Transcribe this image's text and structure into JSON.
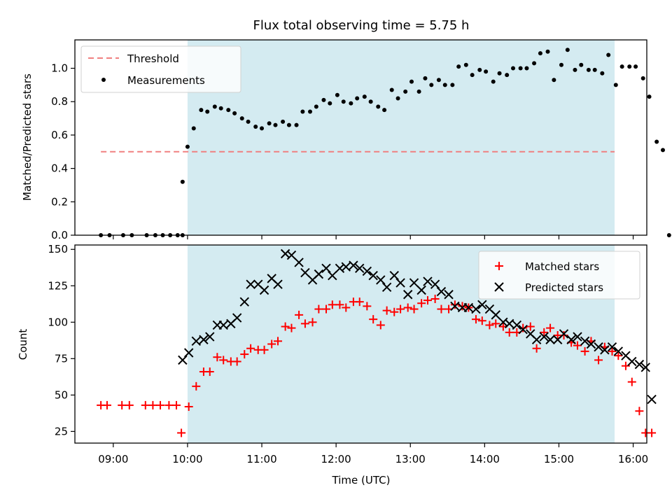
{
  "chart_data": [
    {
      "type": "scatter",
      "title": "Flux total observing time = 5.75 h",
      "xlabel": "",
      "ylabel": "Matched/Predicted stars",
      "xlim": [
        "08:29",
        "16:11"
      ],
      "ylim": [
        0,
        1.17
      ],
      "yticks": [
        0.0,
        0.2,
        0.4,
        0.6,
        0.8,
        1.0
      ],
      "ytick_labels": [
        "0.0",
        "0.2",
        "0.4",
        "0.6",
        "0.8",
        "1.0"
      ],
      "shaded_region": {
        "x_start": "10:00",
        "x_end": "15:45",
        "color": "#d4ebf1"
      },
      "legend": {
        "placement": "upper-left",
        "entries": [
          "Threshold",
          "Measurements"
        ]
      },
      "threshold": {
        "name": "Threshold",
        "y": 0.5,
        "x_start": "08:50",
        "x_end": "15:45",
        "color": "#f08080"
      },
      "series": [
        {
          "name": "Measurements",
          "color": "#000000",
          "points": [
            [
              "08:50",
              0
            ],
            [
              "08:57",
              0
            ],
            [
              "09:08",
              0
            ],
            [
              "09:15",
              0
            ],
            [
              "09:27",
              0
            ],
            [
              "09:34",
              0
            ],
            [
              "09:40",
              0
            ],
            [
              "09:46",
              0
            ],
            [
              "09:52",
              0
            ],
            [
              "09:56",
              0
            ],
            [
              "09:56",
              0.32
            ],
            [
              "10:00",
              0.53
            ],
            [
              "10:05",
              0.64
            ],
            [
              "10:11",
              0.75
            ],
            [
              "10:16",
              0.74
            ],
            [
              "10:22",
              0.77
            ],
            [
              "10:27",
              0.76
            ],
            [
              "10:33",
              0.75
            ],
            [
              "10:38",
              0.73
            ],
            [
              "10:44",
              0.7
            ],
            [
              "10:49",
              0.68
            ],
            [
              "10:55",
              0.65
            ],
            [
              "11:00",
              0.64
            ],
            [
              "11:06",
              0.67
            ],
            [
              "11:11",
              0.66
            ],
            [
              "11:17",
              0.68
            ],
            [
              "11:22",
              0.66
            ],
            [
              "11:28",
              0.66
            ],
            [
              "11:33",
              0.74
            ],
            [
              "11:39",
              0.74
            ],
            [
              "11:44",
              0.77
            ],
            [
              "11:50",
              0.81
            ],
            [
              "11:55",
              0.79
            ],
            [
              "12:01",
              0.84
            ],
            [
              "12:06",
              0.8
            ],
            [
              "12:12",
              0.79
            ],
            [
              "12:17",
              0.82
            ],
            [
              "12:23",
              0.83
            ],
            [
              "12:28",
              0.8
            ],
            [
              "12:34",
              0.77
            ],
            [
              "12:39",
              0.75
            ],
            [
              "12:45",
              0.87
            ],
            [
              "12:50",
              0.82
            ],
            [
              "12:56",
              0.86
            ],
            [
              "13:01",
              0.92
            ],
            [
              "13:07",
              0.86
            ],
            [
              "13:12",
              0.94
            ],
            [
              "13:17",
              0.9
            ],
            [
              "13:23",
              0.93
            ],
            [
              "13:28",
              0.9
            ],
            [
              "13:34",
              0.9
            ],
            [
              "13:39",
              1.01
            ],
            [
              "13:45",
              1.02
            ],
            [
              "13:50",
              0.96
            ],
            [
              "13:56",
              0.99
            ],
            [
              "14:01",
              0.98
            ],
            [
              "14:07",
              0.92
            ],
            [
              "14:12",
              0.97
            ],
            [
              "14:18",
              0.96
            ],
            [
              "14:23",
              1.0
            ],
            [
              "14:29",
              1.0
            ],
            [
              "14:34",
              1.0
            ],
            [
              "14:40",
              1.03
            ],
            [
              "14:45",
              1.09
            ],
            [
              "14:51",
              1.1
            ],
            [
              "14:56",
              0.93
            ],
            [
              "15:02",
              1.02
            ],
            [
              "15:07",
              1.11
            ],
            [
              "15:13",
              0.99
            ],
            [
              "15:18",
              1.02
            ],
            [
              "15:24",
              0.99
            ],
            [
              "15:29",
              0.99
            ],
            [
              "15:35",
              0.97
            ],
            [
              "15:40",
              1.08
            ],
            [
              "15:46",
              0.9
            ],
            [
              "15:51",
              1.01
            ],
            [
              "15:57",
              1.01
            ],
            [
              "16:02",
              1.01
            ],
            [
              "16:08",
              0.94
            ],
            [
              "16:13",
              0.83
            ],
            [
              "16:19",
              0.56
            ],
            [
              "16:24",
              0.51
            ],
            [
              "16:29",
              0
            ]
          ]
        }
      ]
    },
    {
      "type": "scatter",
      "title": "",
      "xlabel": "Time (UTC)",
      "ylabel": "Count",
      "xlim": [
        "08:29",
        "16:11"
      ],
      "ylim": [
        17,
        153
      ],
      "yticks": [
        25,
        50,
        75,
        100,
        125,
        150
      ],
      "ytick_labels": [
        "25",
        "50",
        "75",
        "100",
        "125",
        "150"
      ],
      "xticks": [
        "09:00",
        "10:00",
        "11:00",
        "12:00",
        "13:00",
        "14:00",
        "15:00",
        "16:00"
      ],
      "xtick_labels": [
        "09:00",
        "10:00",
        "11:00",
        "12:00",
        "13:00",
        "14:00",
        "15:00",
        "16:00"
      ],
      "shaded_region": {
        "x_start": "10:00",
        "x_end": "15:45",
        "color": "#d4ebf1"
      },
      "legend": {
        "placement": "upper-right",
        "entries": [
          "Matched stars",
          "Predicted stars"
        ]
      },
      "series": [
        {
          "name": "Matched stars",
          "marker": "plus",
          "color": "#ff0000",
          "points": [
            [
              "08:50",
              43
            ],
            [
              "08:55",
              43
            ],
            [
              "09:07",
              43
            ],
            [
              "09:13",
              43
            ],
            [
              "09:26",
              43
            ],
            [
              "09:32",
              43
            ],
            [
              "09:38",
              43
            ],
            [
              "09:45",
              43
            ],
            [
              "09:51",
              43
            ],
            [
              "09:55",
              24
            ],
            [
              "10:01",
              42
            ],
            [
              "10:07",
              56
            ],
            [
              "10:13",
              66
            ],
            [
              "10:18",
              66
            ],
            [
              "10:24",
              76
            ],
            [
              "10:29",
              74
            ],
            [
              "10:35",
              73
            ],
            [
              "10:40",
              73
            ],
            [
              "10:46",
              78
            ],
            [
              "10:51",
              82
            ],
            [
              "10:57",
              81
            ],
            [
              "11:02",
              81
            ],
            [
              "11:08",
              85
            ],
            [
              "11:13",
              87
            ],
            [
              "11:19",
              97
            ],
            [
              "11:24",
              96
            ],
            [
              "11:30",
              105
            ],
            [
              "11:35",
              99
            ],
            [
              "11:41",
              100
            ],
            [
              "11:46",
              109
            ],
            [
              "11:52",
              109
            ],
            [
              "11:57",
              112
            ],
            [
              "12:03",
              112
            ],
            [
              "12:08",
              110
            ],
            [
              "12:14",
              114
            ],
            [
              "12:19",
              114
            ],
            [
              "12:25",
              111
            ],
            [
              "12:30",
              102
            ],
            [
              "12:36",
              98
            ],
            [
              "12:41",
              108
            ],
            [
              "12:47",
              107
            ],
            [
              "12:52",
              109
            ],
            [
              "12:58",
              110
            ],
            [
              "13:03",
              109
            ],
            [
              "13:09",
              113
            ],
            [
              "13:14",
              115
            ],
            [
              "13:20",
              116
            ],
            [
              "13:25",
              109
            ],
            [
              "13:31",
              109
            ],
            [
              "13:36",
              112
            ],
            [
              "13:42",
              111
            ],
            [
              "13:47",
              110
            ],
            [
              "13:53",
              102
            ],
            [
              "13:58",
              101
            ],
            [
              "14:04",
              98
            ],
            [
              "14:09",
              99
            ],
            [
              "14:15",
              97
            ],
            [
              "14:20",
              93
            ],
            [
              "14:26",
              93
            ],
            [
              "14:31",
              96
            ],
            [
              "14:37",
              97
            ],
            [
              "14:42",
              82
            ],
            [
              "14:48",
              93
            ],
            [
              "14:53",
              96
            ],
            [
              "14:59",
              91
            ],
            [
              "15:04",
              91
            ],
            [
              "15:10",
              86
            ],
            [
              "15:15",
              84
            ],
            [
              "15:21",
              80
            ],
            [
              "15:26",
              87
            ],
            [
              "15:32",
              74
            ],
            [
              "15:37",
              83
            ],
            [
              "15:43",
              80
            ],
            [
              "15:48",
              77
            ],
            [
              "15:54",
              70
            ],
            [
              "15:59",
              59
            ],
            [
              "16:05",
              39
            ],
            [
              "16:10",
              24
            ],
            [
              "16:15",
              24
            ]
          ]
        },
        {
          "name": "Predicted stars",
          "marker": "x",
          "color": "#000000",
          "points": [
            [
              "09:56",
              74
            ],
            [
              "10:01",
              79
            ],
            [
              "10:07",
              87
            ],
            [
              "10:13",
              88
            ],
            [
              "10:18",
              90
            ],
            [
              "10:24",
              98
            ],
            [
              "10:29",
              98
            ],
            [
              "10:35",
              99
            ],
            [
              "10:40",
              103
            ],
            [
              "10:46",
              114
            ],
            [
              "10:51",
              126
            ],
            [
              "10:57",
              126
            ],
            [
              "11:02",
              122
            ],
            [
              "11:08",
              130
            ],
            [
              "11:13",
              126
            ],
            [
              "11:19",
              147
            ],
            [
              "11:24",
              146
            ],
            [
              "11:30",
              141
            ],
            [
              "11:35",
              134
            ],
            [
              "11:41",
              129
            ],
            [
              "11:46",
              133
            ],
            [
              "11:52",
              137
            ],
            [
              "11:57",
              132
            ],
            [
              "12:03",
              137
            ],
            [
              "12:08",
              138
            ],
            [
              "12:14",
              139
            ],
            [
              "12:19",
              137
            ],
            [
              "12:25",
              135
            ],
            [
              "12:30",
              132
            ],
            [
              "12:36",
              129
            ],
            [
              "12:41",
              124
            ],
            [
              "12:47",
              132
            ],
            [
              "12:52",
              127
            ],
            [
              "12:58",
              119
            ],
            [
              "13:03",
              127
            ],
            [
              "13:09",
              122
            ],
            [
              "13:14",
              128
            ],
            [
              "13:20",
              126
            ],
            [
              "13:25",
              121
            ],
            [
              "13:31",
              119
            ],
            [
              "13:36",
              111
            ],
            [
              "13:42",
              110
            ],
            [
              "13:47",
              110
            ],
            [
              "13:53",
              109
            ],
            [
              "13:58",
              112
            ],
            [
              "14:04",
              109
            ],
            [
              "14:09",
              105
            ],
            [
              "14:15",
              100
            ],
            [
              "14:20",
              99
            ],
            [
              "14:26",
              98
            ],
            [
              "14:31",
              95
            ],
            [
              "14:37",
              92
            ],
            [
              "14:42",
              88
            ],
            [
              "14:48",
              90
            ],
            [
              "14:53",
              88
            ],
            [
              "14:59",
              88
            ],
            [
              "15:04",
              92
            ],
            [
              "15:10",
              88
            ],
            [
              "15:15",
              90
            ],
            [
              "15:21",
              87
            ],
            [
              "15:26",
              85
            ],
            [
              "15:32",
              83
            ],
            [
              "15:37",
              81
            ],
            [
              "15:43",
              83
            ],
            [
              "15:48",
              80
            ],
            [
              "15:54",
              77
            ],
            [
              "15:59",
              73
            ],
            [
              "16:05",
              71
            ],
            [
              "16:10",
              69
            ],
            [
              "16:15",
              47
            ]
          ]
        }
      ]
    }
  ]
}
